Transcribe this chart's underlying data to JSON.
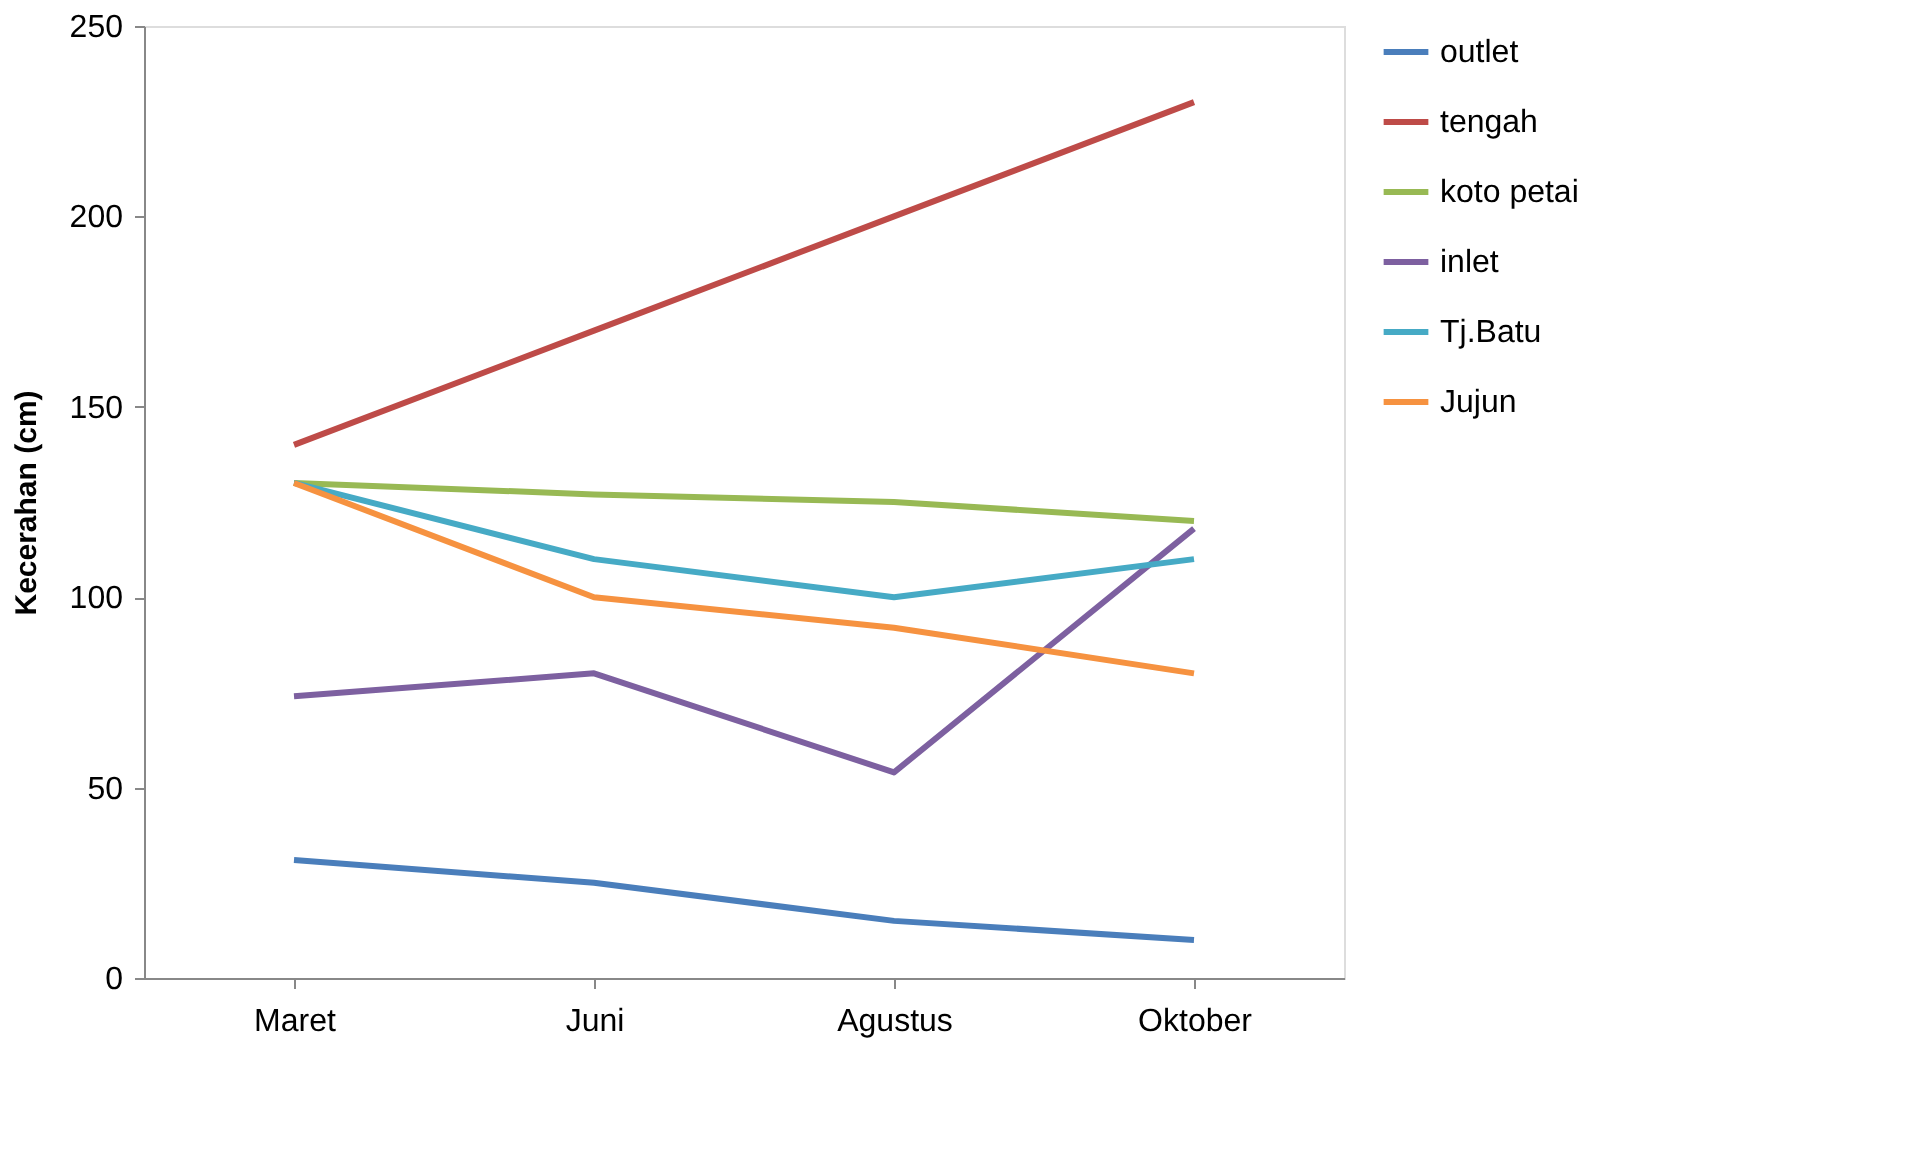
{
  "chart_data": {
    "type": "line",
    "ylabel": "Kecerahan (cm)",
    "categories": [
      "Maret",
      "Juni",
      "Agustus",
      "Oktober"
    ],
    "series": [
      {
        "name": "outlet",
        "color": "#4a7ebb",
        "values": [
          31,
          25,
          15,
          10
        ]
      },
      {
        "name": "tengah",
        "color": "#be4b48",
        "values": [
          140,
          170,
          200,
          230
        ]
      },
      {
        "name": "koto petai",
        "color": "#98b954",
        "values": [
          130,
          127,
          125,
          120
        ]
      },
      {
        "name": "inlet",
        "color": "#7d60a0",
        "values": [
          74,
          80,
          54,
          118
        ]
      },
      {
        "name": "Tj.Batu",
        "color": "#46aac5",
        "values": [
          130,
          110,
          100,
          110
        ]
      },
      {
        "name": "Jujun",
        "color": "#f69240",
        "values": [
          130,
          100,
          92,
          80
        ]
      }
    ],
    "ylim": [
      0,
      250
    ],
    "yticks": [
      0,
      50,
      100,
      150,
      200,
      250
    ],
    "grid": false,
    "legend": "right",
    "marker": "none",
    "line_style": "solid"
  }
}
